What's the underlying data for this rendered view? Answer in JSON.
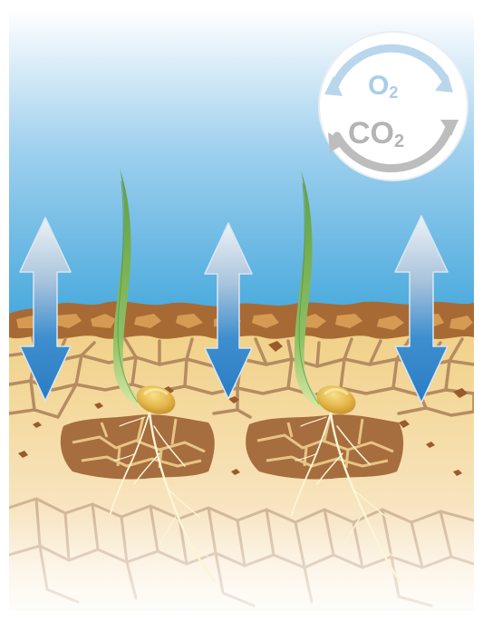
{
  "diagram": {
    "cycle": {
      "top_label": "O",
      "top_subscript": "2",
      "bottom_label": "CO",
      "bottom_subscript": "2",
      "top_color": "#a9cde8",
      "bottom_color": "#b4b4b4"
    },
    "colors": {
      "sky_top": "#ffffff",
      "sky_bottom": "#47a9dc",
      "soil_surface": "#a86a34",
      "soil_light": "#f3d58f",
      "soil_fade": "#fbf1e3",
      "crack": "#b08a62",
      "dark_clump": "#a36b3e",
      "seed": "#e2b343",
      "leaf": "#6aa84f",
      "root": "#fbf6d6",
      "arrow_top": "#e6edf3",
      "arrow_bottom": "#2f84c8"
    },
    "plants": [
      "left-seedling",
      "right-seedling"
    ],
    "arrows": [
      "left-arrow",
      "middle-arrow",
      "right-arrow"
    ]
  }
}
